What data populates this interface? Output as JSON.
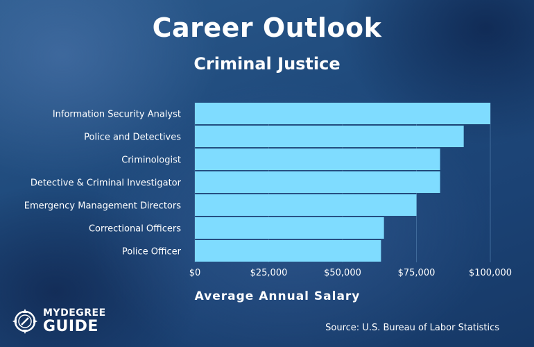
{
  "title": "Career Outlook",
  "subtitle": "Criminal Justice",
  "source": "Source: U.S. Bureau of Labor Statistics",
  "logo": {
    "top": "MYDEGREE",
    "bottom": "GUIDE",
    "icon": "compass-icon"
  },
  "colors": {
    "bar": "#7fdcff",
    "gridline": "#3f6a9a"
  },
  "chart_data": {
    "type": "bar",
    "orientation": "horizontal",
    "title": "Career Outlook",
    "subtitle": "Criminal Justice",
    "xlabel": "Average Annual Salary",
    "ylabel": "",
    "categories": [
      "Information Security Analyst",
      "Police and Detectives",
      "Criminologist",
      "Detective & Criminal Investigator",
      "Emergency Management Directors",
      "Correctional Officers",
      "Police Officer"
    ],
    "values": [
      100000,
      91000,
      83000,
      83000,
      75000,
      64000,
      63000
    ],
    "xlim": [
      0,
      100000
    ],
    "xticks": [
      0,
      25000,
      50000,
      75000,
      100000
    ],
    "xtick_labels": [
      "$0",
      "$25,000",
      "$50,000",
      "$75,000",
      "$100,000"
    ],
    "grid": true,
    "legend": "none"
  }
}
